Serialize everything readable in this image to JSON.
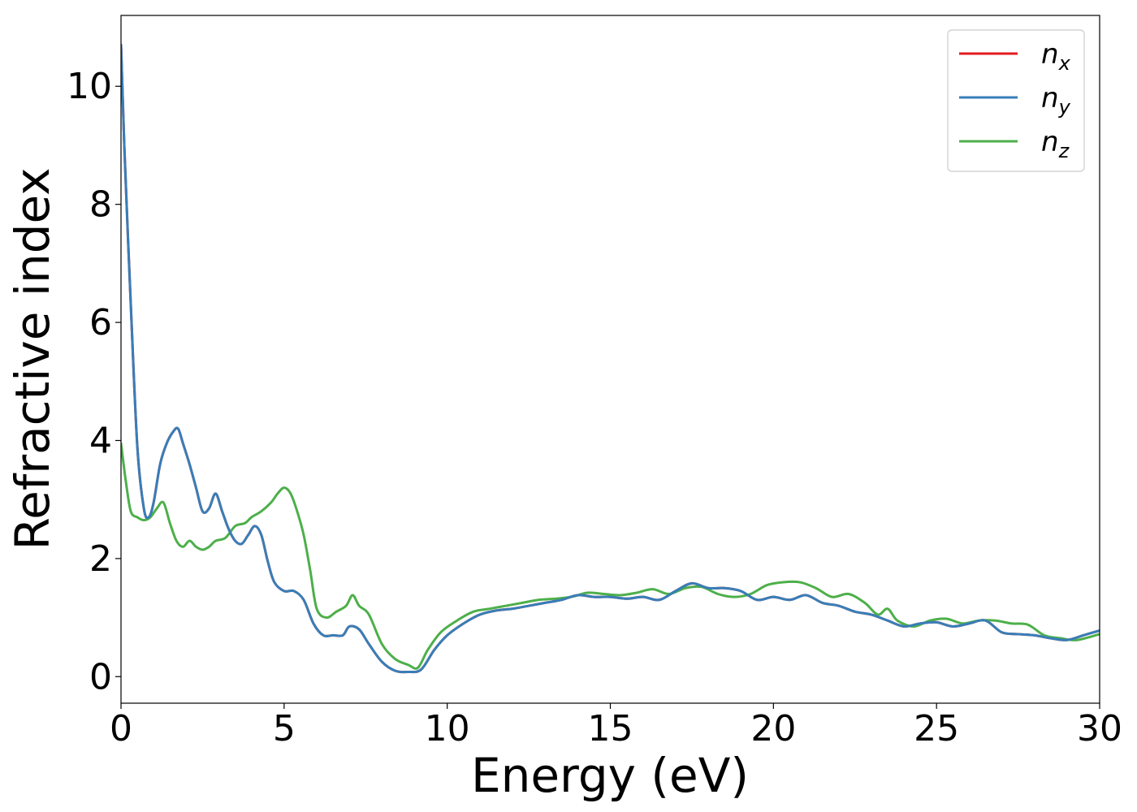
{
  "chart_data": {
    "type": "line",
    "title": "",
    "xlabel": "Energy (eV)",
    "ylabel": "Refractive index",
    "xlim": [
      0,
      30
    ],
    "ylim": [
      -0.45,
      11.2
    ],
    "xticks": [
      0,
      5,
      10,
      15,
      20,
      25,
      30
    ],
    "xtick_labels": [
      "0",
      "5",
      "10",
      "15",
      "20",
      "25",
      "30"
    ],
    "yticks": [
      0,
      2,
      4,
      6,
      8,
      10
    ],
    "ytick_labels": [
      "0",
      "2",
      "4",
      "6",
      "8",
      "10"
    ],
    "grid": false,
    "legend_position": "top-right",
    "series": [
      {
        "name": "n_x",
        "legend_base": "n",
        "legend_sub": "x",
        "color": "#e41a1c",
        "x": [
          0,
          0.1,
          0.3,
          0.5,
          0.7,
          0.85,
          1.0,
          1.2,
          1.4,
          1.6,
          1.75,
          1.9,
          2.1,
          2.3,
          2.5,
          2.7,
          2.9,
          3.1,
          3.3,
          3.5,
          3.7,
          3.9,
          4.1,
          4.3,
          4.5,
          4.7,
          5.0,
          5.3,
          5.6,
          5.9,
          6.2,
          6.5,
          6.8,
          7.0,
          7.3,
          7.6,
          8.0,
          8.4,
          8.8,
          9.2,
          9.6,
          10.0,
          10.5,
          11.0,
          11.5,
          12.0,
          12.5,
          13.0,
          13.5,
          14.0,
          14.5,
          15.0,
          15.5,
          16.0,
          16.5,
          17.0,
          17.5,
          18.0,
          18.5,
          19.0,
          19.5,
          20.0,
          20.5,
          21.0,
          21.5,
          22.0,
          22.5,
          23.0,
          23.5,
          24.0,
          24.5,
          25.0,
          25.5,
          26.0,
          26.5,
          27.0,
          27.5,
          28.0,
          28.5,
          29.0,
          29.5,
          30.0
        ],
        "y": [
          10.7,
          9.0,
          6.3,
          3.9,
          2.85,
          2.7,
          2.95,
          3.6,
          3.95,
          4.15,
          4.2,
          3.95,
          3.6,
          3.2,
          2.8,
          2.85,
          3.1,
          2.8,
          2.5,
          2.3,
          2.25,
          2.4,
          2.55,
          2.4,
          1.95,
          1.6,
          1.45,
          1.45,
          1.3,
          0.9,
          0.7,
          0.7,
          0.7,
          0.85,
          0.8,
          0.55,
          0.25,
          0.1,
          0.08,
          0.12,
          0.45,
          0.7,
          0.9,
          1.05,
          1.12,
          1.15,
          1.2,
          1.25,
          1.3,
          1.38,
          1.35,
          1.35,
          1.32,
          1.35,
          1.3,
          1.45,
          1.58,
          1.5,
          1.5,
          1.45,
          1.3,
          1.35,
          1.3,
          1.38,
          1.25,
          1.2,
          1.1,
          1.05,
          0.95,
          0.85,
          0.9,
          0.92,
          0.85,
          0.9,
          0.95,
          0.75,
          0.72,
          0.7,
          0.65,
          0.62,
          0.7,
          0.78
        ]
      },
      {
        "name": "n_y",
        "legend_base": "n",
        "legend_sub": "y",
        "color": "#377eb8",
        "x": [
          0,
          0.1,
          0.3,
          0.5,
          0.7,
          0.85,
          1.0,
          1.2,
          1.4,
          1.6,
          1.75,
          1.9,
          2.1,
          2.3,
          2.5,
          2.7,
          2.9,
          3.1,
          3.3,
          3.5,
          3.7,
          3.9,
          4.1,
          4.3,
          4.5,
          4.7,
          5.0,
          5.3,
          5.6,
          5.9,
          6.2,
          6.5,
          6.8,
          7.0,
          7.3,
          7.6,
          8.0,
          8.4,
          8.8,
          9.2,
          9.6,
          10.0,
          10.5,
          11.0,
          11.5,
          12.0,
          12.5,
          13.0,
          13.5,
          14.0,
          14.5,
          15.0,
          15.5,
          16.0,
          16.5,
          17.0,
          17.5,
          18.0,
          18.5,
          19.0,
          19.5,
          20.0,
          20.5,
          21.0,
          21.5,
          22.0,
          22.5,
          23.0,
          23.5,
          24.0,
          24.5,
          25.0,
          25.5,
          26.0,
          26.5,
          27.0,
          27.5,
          28.0,
          28.5,
          29.0,
          29.5,
          30.0
        ],
        "y": [
          10.7,
          9.0,
          6.3,
          3.9,
          2.85,
          2.7,
          2.95,
          3.6,
          3.95,
          4.15,
          4.2,
          3.95,
          3.6,
          3.2,
          2.8,
          2.85,
          3.1,
          2.8,
          2.5,
          2.3,
          2.25,
          2.4,
          2.55,
          2.4,
          1.95,
          1.6,
          1.45,
          1.45,
          1.3,
          0.9,
          0.7,
          0.7,
          0.7,
          0.85,
          0.8,
          0.55,
          0.25,
          0.1,
          0.08,
          0.12,
          0.45,
          0.7,
          0.9,
          1.05,
          1.12,
          1.15,
          1.2,
          1.25,
          1.3,
          1.38,
          1.35,
          1.35,
          1.32,
          1.35,
          1.3,
          1.45,
          1.58,
          1.5,
          1.5,
          1.45,
          1.3,
          1.35,
          1.3,
          1.38,
          1.25,
          1.2,
          1.1,
          1.05,
          0.95,
          0.85,
          0.9,
          0.92,
          0.85,
          0.9,
          0.95,
          0.75,
          0.72,
          0.7,
          0.65,
          0.62,
          0.7,
          0.78
        ]
      },
      {
        "name": "n_z",
        "legend_base": "n",
        "legend_sub": "z",
        "color": "#4daf4a",
        "x": [
          0,
          0.15,
          0.3,
          0.5,
          0.7,
          0.9,
          1.1,
          1.3,
          1.5,
          1.7,
          1.9,
          2.1,
          2.3,
          2.5,
          2.7,
          2.9,
          3.2,
          3.5,
          3.8,
          4.0,
          4.3,
          4.6,
          4.8,
          5.0,
          5.2,
          5.4,
          5.6,
          5.8,
          6.0,
          6.3,
          6.6,
          6.9,
          7.1,
          7.3,
          7.6,
          8.0,
          8.4,
          8.8,
          9.1,
          9.4,
          9.8,
          10.3,
          10.8,
          11.3,
          11.8,
          12.3,
          12.8,
          13.3,
          13.8,
          14.3,
          14.8,
          15.3,
          15.8,
          16.3,
          16.8,
          17.3,
          17.8,
          18.3,
          18.8,
          19.3,
          19.8,
          20.3,
          20.8,
          21.3,
          21.8,
          22.3,
          22.8,
          23.2,
          23.5,
          23.8,
          24.3,
          24.8,
          25.3,
          25.8,
          26.3,
          26.8,
          27.3,
          27.8,
          28.3,
          28.8,
          29.3,
          30.0
        ],
        "y": [
          3.95,
          3.3,
          2.8,
          2.7,
          2.65,
          2.7,
          2.85,
          2.95,
          2.6,
          2.3,
          2.2,
          2.3,
          2.2,
          2.15,
          2.2,
          2.3,
          2.35,
          2.55,
          2.6,
          2.7,
          2.8,
          2.95,
          3.1,
          3.2,
          3.1,
          2.8,
          2.4,
          1.8,
          1.15,
          1.0,
          1.1,
          1.2,
          1.38,
          1.2,
          1.05,
          0.55,
          0.3,
          0.2,
          0.15,
          0.45,
          0.75,
          0.95,
          1.1,
          1.15,
          1.2,
          1.25,
          1.3,
          1.32,
          1.35,
          1.42,
          1.4,
          1.38,
          1.42,
          1.48,
          1.4,
          1.5,
          1.52,
          1.4,
          1.35,
          1.4,
          1.55,
          1.6,
          1.6,
          1.5,
          1.35,
          1.4,
          1.25,
          1.05,
          1.15,
          0.95,
          0.85,
          0.95,
          0.98,
          0.9,
          0.95,
          0.95,
          0.9,
          0.88,
          0.7,
          0.65,
          0.62,
          0.72
        ]
      }
    ]
  }
}
